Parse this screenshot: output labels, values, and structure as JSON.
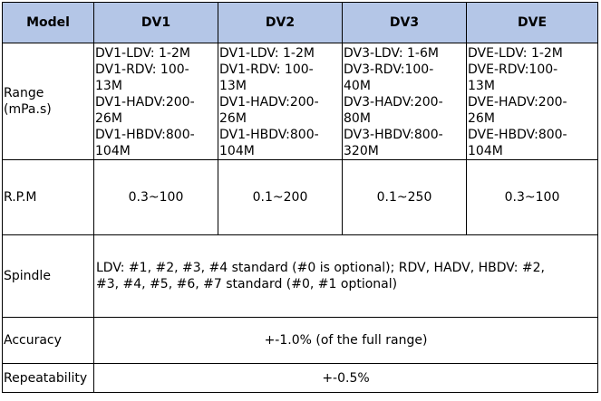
{
  "header": {
    "model": "Model",
    "dv1": "DV1",
    "dv2": "DV2",
    "dv3": "DV3",
    "dve": "DVE"
  },
  "range": {
    "label_line1": "Range",
    "label_line2": "(mPa.s)",
    "dv1": [
      "DV1-LDV: 1-2M",
      "DV1-RDV: 100-",
      "13M",
      "DV1-HADV:200-",
      "26M",
      "DV1-HBDV:800-",
      "104M"
    ],
    "dv2": [
      "DV1-LDV: 1-2M",
      "DV1-RDV: 100-",
      "13M",
      "DV1-HADV:200-",
      "26M",
      "DV1-HBDV:800-",
      "104M"
    ],
    "dv3": [
      "DV3-LDV: 1-6M",
      "DV3-RDV:100-",
      "40M",
      "DV3-HADV:200-",
      "80M",
      "DV3-HBDV:800-",
      "320M"
    ],
    "dve": [
      "DVE-LDV: 1-2M",
      "DVE-RDV:100-",
      "13M",
      "DVE-HADV:200-",
      "26M",
      "DVE-HBDV:800-",
      "104M"
    ]
  },
  "rpm": {
    "label": "R.P.M",
    "dv1": "0.3~100",
    "dv2": "0.1~200",
    "dv3": "0.1~250",
    "dve": "0.3~100"
  },
  "spindle": {
    "label": "Spindle",
    "line1": "LDV: #1, #2, #3, #4 standard (#0 is optional); RDV, HADV, HBDV: #2,",
    "line2": "#3, #4, #5, #6, #7 standard (#0, #1 optional)"
  },
  "accuracy": {
    "label": "Accuracy",
    "value": "+-1.0% (of the full range)"
  },
  "repeatability": {
    "label": "Repeatability",
    "value": "+-0.5%"
  }
}
